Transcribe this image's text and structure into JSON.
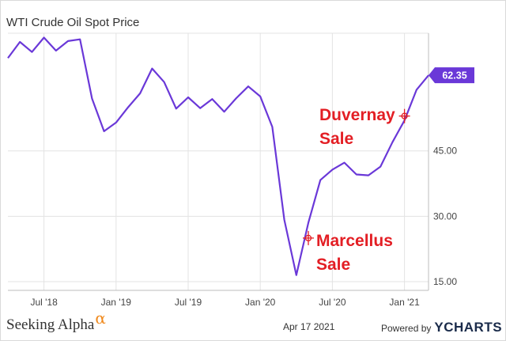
{
  "chart_data": {
    "type": "line",
    "title": "WTI Crude Oil Spot Price",
    "x_ticks": [
      "Jul '18",
      "Jan '19",
      "Jul '19",
      "Jan '20",
      "Jul '20",
      "Jan '21"
    ],
    "y_ticks": [
      "15.00",
      "30.00",
      "45.00"
    ],
    "ylim": [
      13,
      72
    ],
    "grid": true,
    "series": [
      {
        "color": "#6a38d8",
        "x": [
          "2018-04",
          "2018-05",
          "2018-06",
          "2018-07",
          "2018-08",
          "2018-09",
          "2018-10",
          "2018-11",
          "2018-12",
          "2019-01",
          "2019-02",
          "2019-03",
          "2019-04",
          "2019-05",
          "2019-06",
          "2019-07",
          "2019-08",
          "2019-09",
          "2019-10",
          "2019-11",
          "2019-12",
          "2020-01",
          "2020-02",
          "2020-03",
          "2020-04",
          "2020-05",
          "2020-06",
          "2020-07",
          "2020-08",
          "2020-09",
          "2020-10",
          "2020-11",
          "2020-12",
          "2021-01",
          "2021-02",
          "2021-03"
        ],
        "values": [
          66.3,
          70.0,
          67.7,
          71.0,
          68.0,
          70.2,
          70.6,
          57.0,
          49.5,
          51.5,
          55.0,
          58.2,
          63.9,
          60.8,
          54.7,
          57.3,
          54.8,
          56.9,
          54.0,
          57.1,
          59.8,
          57.5,
          50.5,
          29.2,
          16.5,
          28.5,
          38.3,
          40.7,
          42.3,
          39.6,
          39.4,
          41.4,
          47.0,
          52.0,
          59.0,
          62.35
        ]
      }
    ],
    "last_value_label": "62.35",
    "annotations": [
      {
        "lines": [
          "Duvernay",
          "Sale"
        ],
        "x": "2021-01",
        "y": 53.0
      },
      {
        "lines": [
          "Marcellus",
          "Sale"
        ],
        "x": "2020-05",
        "y": 25.0
      }
    ]
  },
  "footer": {
    "source_brand": "Seeking Alpha",
    "alpha_glyph": "α",
    "date": "Apr 17 2021",
    "powered_by": "Powered by",
    "chart_brand": "YCHARTS"
  }
}
